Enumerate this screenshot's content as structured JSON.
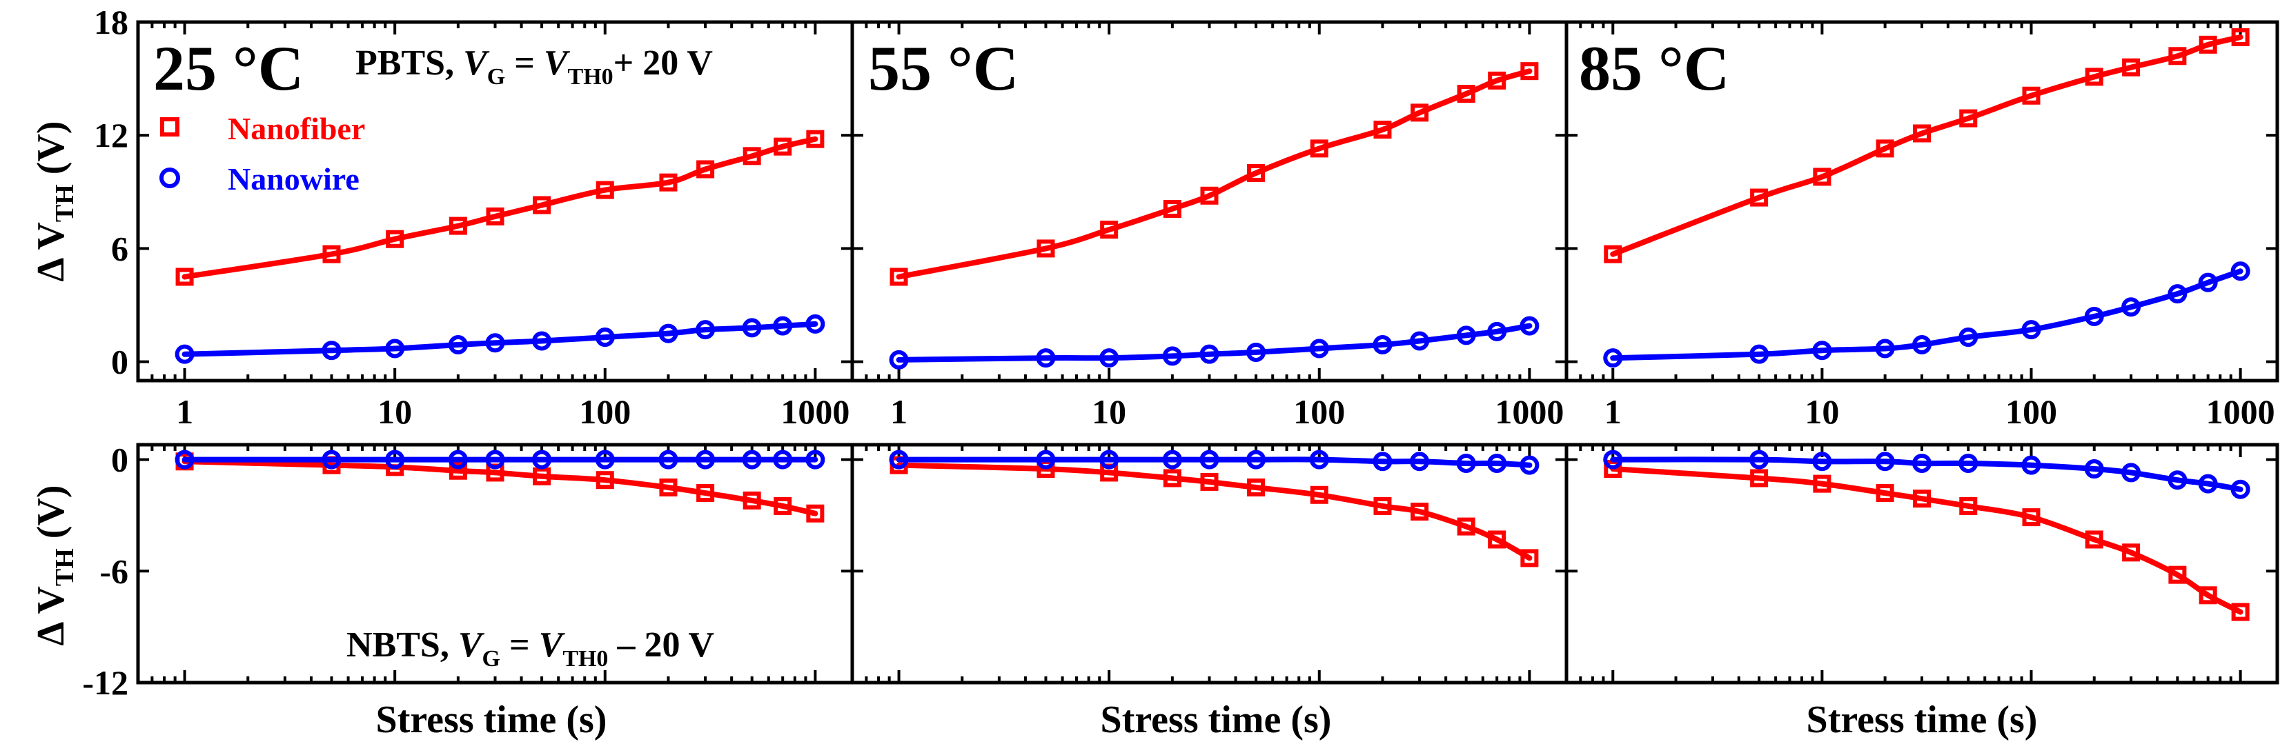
{
  "figure": {
    "ylabel_top": {
      "prefix": "Δ V",
      "sub": "TH",
      "suffix": " (V)"
    },
    "ylabel_bottom": {
      "prefix": "Δ V",
      "sub": "TH",
      "suffix": " (V)"
    },
    "xlabel": "Stress time (s)",
    "pbts_condition": {
      "prefix": "PBTS, ",
      "v1": "V",
      "v1sub": "G",
      "eq": " = ",
      "v2": "V",
      "v2sub": "TH0",
      "tail": "+ 20 V"
    },
    "nbts_condition": {
      "prefix": "NBTS, ",
      "v1": "V",
      "v1sub": "G",
      "eq": " = ",
      "v2": "V",
      "v2sub": "TH0",
      "tail": " – 20 V"
    },
    "legend": [
      {
        "label": "Nanofiber",
        "color": "#ff0000",
        "marker": "square"
      },
      {
        "label": "Nanowire",
        "color": "#0000ff",
        "marker": "circle"
      }
    ]
  },
  "chart_data": [
    {
      "type": "scatter",
      "panel": "pbts-25C",
      "title": "25 °C",
      "xscale": "log",
      "xlim": [
        0.6,
        1500
      ],
      "ylim": [
        -1,
        18
      ],
      "xticks": [
        1,
        10,
        100,
        1000
      ],
      "xticklabels": [
        "1",
        "10",
        "100",
        "1000"
      ],
      "yticks": [
        0,
        6,
        12,
        18
      ],
      "yticklabels": [
        "0",
        "6",
        "12",
        "18"
      ],
      "x": [
        1,
        5,
        10,
        20,
        30,
        50,
        100,
        200,
        300,
        500,
        700,
        1000
      ],
      "series": [
        {
          "name": "Nanofiber",
          "color": "#ff0000",
          "marker": "square",
          "values": [
            4.5,
            5.7,
            6.5,
            7.2,
            7.7,
            8.3,
            9.1,
            9.5,
            10.2,
            10.9,
            11.4,
            11.8
          ]
        },
        {
          "name": "Nanowire",
          "color": "#0000ff",
          "marker": "circle",
          "values": [
            0.4,
            0.6,
            0.7,
            0.9,
            1.0,
            1.1,
            1.3,
            1.5,
            1.7,
            1.8,
            1.9,
            2.0
          ]
        }
      ]
    },
    {
      "type": "scatter",
      "panel": "pbts-55C",
      "title": "55 °C",
      "xscale": "log",
      "xlim": [
        0.6,
        1500
      ],
      "ylim": [
        -1,
        18
      ],
      "xticks": [
        1,
        10,
        100,
        1000
      ],
      "xticklabels": [
        "1",
        "10",
        "100",
        "1000"
      ],
      "yticks": [
        0,
        6,
        12,
        18
      ],
      "yticklabels": [],
      "x": [
        1,
        5,
        10,
        20,
        30,
        50,
        100,
        200,
        300,
        500,
        700,
        1000
      ],
      "series": [
        {
          "name": "Nanofiber",
          "color": "#ff0000",
          "marker": "square",
          "values": [
            4.5,
            6.0,
            7.0,
            8.1,
            8.8,
            10.0,
            11.3,
            12.3,
            13.2,
            14.2,
            14.9,
            15.4
          ]
        },
        {
          "name": "Nanowire",
          "color": "#0000ff",
          "marker": "circle",
          "values": [
            0.1,
            0.2,
            0.2,
            0.3,
            0.4,
            0.5,
            0.7,
            0.9,
            1.1,
            1.4,
            1.6,
            1.9
          ]
        }
      ]
    },
    {
      "type": "scatter",
      "panel": "pbts-85C",
      "title": "85 °C",
      "xscale": "log",
      "xlim": [
        0.6,
        1500
      ],
      "ylim": [
        -1,
        18
      ],
      "xticks": [
        1,
        10,
        100,
        1000
      ],
      "xticklabels": [
        "1",
        "10",
        "100",
        "1000"
      ],
      "yticks": [
        0,
        6,
        12,
        18
      ],
      "yticklabels": [],
      "x": [
        1,
        5,
        10,
        20,
        30,
        50,
        100,
        200,
        300,
        500,
        700,
        1000
      ],
      "series": [
        {
          "name": "Nanofiber",
          "color": "#ff0000",
          "marker": "square",
          "values": [
            5.7,
            8.7,
            9.8,
            11.3,
            12.1,
            12.9,
            14.1,
            15.1,
            15.6,
            16.2,
            16.8,
            17.2
          ]
        },
        {
          "name": "Nanowire",
          "color": "#0000ff",
          "marker": "circle",
          "values": [
            0.2,
            0.4,
            0.6,
            0.7,
            0.9,
            1.3,
            1.7,
            2.4,
            2.9,
            3.6,
            4.2,
            4.8
          ]
        }
      ]
    },
    {
      "type": "scatter",
      "panel": "nbts-25C",
      "xscale": "log",
      "xlim": [
        0.6,
        1500
      ],
      "ylim": [
        -12,
        0.8
      ],
      "xticks": [
        1,
        10,
        100,
        1000
      ],
      "xticklabels": [],
      "yticks": [
        0,
        -6,
        -12
      ],
      "yticklabels": [
        "0",
        "-6",
        "-12"
      ],
      "x": [
        1,
        5,
        10,
        20,
        30,
        50,
        100,
        200,
        300,
        500,
        700,
        1000
      ],
      "series": [
        {
          "name": "Nanofiber",
          "color": "#ff0000",
          "marker": "square",
          "values": [
            -0.1,
            -0.3,
            -0.4,
            -0.6,
            -0.7,
            -0.9,
            -1.1,
            -1.5,
            -1.8,
            -2.2,
            -2.5,
            -2.9
          ]
        },
        {
          "name": "Nanowire",
          "color": "#0000ff",
          "marker": "circle",
          "values": [
            0.0,
            0.0,
            0.0,
            0.0,
            0.0,
            0.0,
            0.0,
            0.0,
            0.0,
            0.0,
            0.0,
            0.0
          ]
        }
      ]
    },
    {
      "type": "scatter",
      "panel": "nbts-55C",
      "xscale": "log",
      "xlim": [
        0.6,
        1500
      ],
      "ylim": [
        -12,
        0.8
      ],
      "xticks": [
        1,
        10,
        100,
        1000
      ],
      "xticklabels": [],
      "yticks": [
        0,
        -6,
        -12
      ],
      "yticklabels": [],
      "x": [
        1,
        5,
        10,
        20,
        30,
        50,
        100,
        200,
        300,
        500,
        700,
        1000
      ],
      "series": [
        {
          "name": "Nanofiber",
          "color": "#ff0000",
          "marker": "square",
          "values": [
            -0.3,
            -0.5,
            -0.7,
            -1.0,
            -1.2,
            -1.5,
            -1.9,
            -2.5,
            -2.8,
            -3.6,
            -4.3,
            -5.3
          ]
        },
        {
          "name": "Nanowire",
          "color": "#0000ff",
          "marker": "circle",
          "values": [
            0.0,
            0.0,
            0.0,
            0.0,
            0.0,
            0.0,
            0.0,
            -0.1,
            -0.1,
            -0.2,
            -0.2,
            -0.3
          ]
        }
      ]
    },
    {
      "type": "scatter",
      "panel": "nbts-85C",
      "xscale": "log",
      "xlim": [
        0.6,
        1500
      ],
      "ylim": [
        -12,
        0.8
      ],
      "xticks": [
        1,
        10,
        100,
        1000
      ],
      "xticklabels": [],
      "yticks": [
        0,
        -6,
        -12
      ],
      "yticklabels": [],
      "x": [
        1,
        5,
        10,
        20,
        30,
        50,
        100,
        200,
        300,
        500,
        700,
        1000
      ],
      "series": [
        {
          "name": "Nanofiber",
          "color": "#ff0000",
          "marker": "square",
          "values": [
            -0.5,
            -1.0,
            -1.3,
            -1.8,
            -2.1,
            -2.5,
            -3.1,
            -4.3,
            -5.0,
            -6.2,
            -7.3,
            -8.2
          ]
        },
        {
          "name": "Nanowire",
          "color": "#0000ff",
          "marker": "circle",
          "values": [
            0.0,
            0.0,
            -0.1,
            -0.1,
            -0.2,
            -0.2,
            -0.3,
            -0.5,
            -0.7,
            -1.1,
            -1.3,
            -1.6
          ]
        }
      ]
    }
  ]
}
